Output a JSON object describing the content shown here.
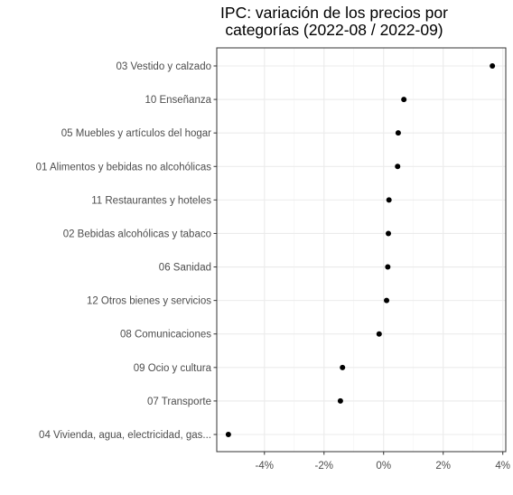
{
  "chart_data": {
    "type": "scatter",
    "title_lines": [
      "IPC: variación de los precios por",
      "categorías (2022-08 / 2022-09)"
    ],
    "xlabel": "",
    "ylabel": "",
    "xlim": [
      -5.6,
      4.1
    ],
    "x_ticks": [
      -4,
      -2,
      0,
      2,
      4
    ],
    "x_tick_labels": [
      "-4%",
      "-2%",
      "0%",
      "2%",
      "4%"
    ],
    "grid": true,
    "legend": "none",
    "point_color": "#000000",
    "categories": [
      "03 Vestido y calzado",
      "10 Enseñanza",
      "05 Muebles y artículos del hogar",
      "01 Alimentos y bebidas no alcohólicas",
      "11 Restaurantes y hoteles",
      "02 Bebidas alcohólicas y tabaco",
      "06 Sanidad",
      "12 Otros bienes y servicios",
      "08 Comunicaciones",
      "09 Ocio y cultura",
      "07 Transporte",
      "04 Vivienda, agua, electricidad, gas..."
    ],
    "values": [
      3.65,
      0.68,
      0.49,
      0.47,
      0.18,
      0.16,
      0.14,
      0.1,
      -0.15,
      -1.38,
      -1.45,
      -5.21
    ]
  }
}
